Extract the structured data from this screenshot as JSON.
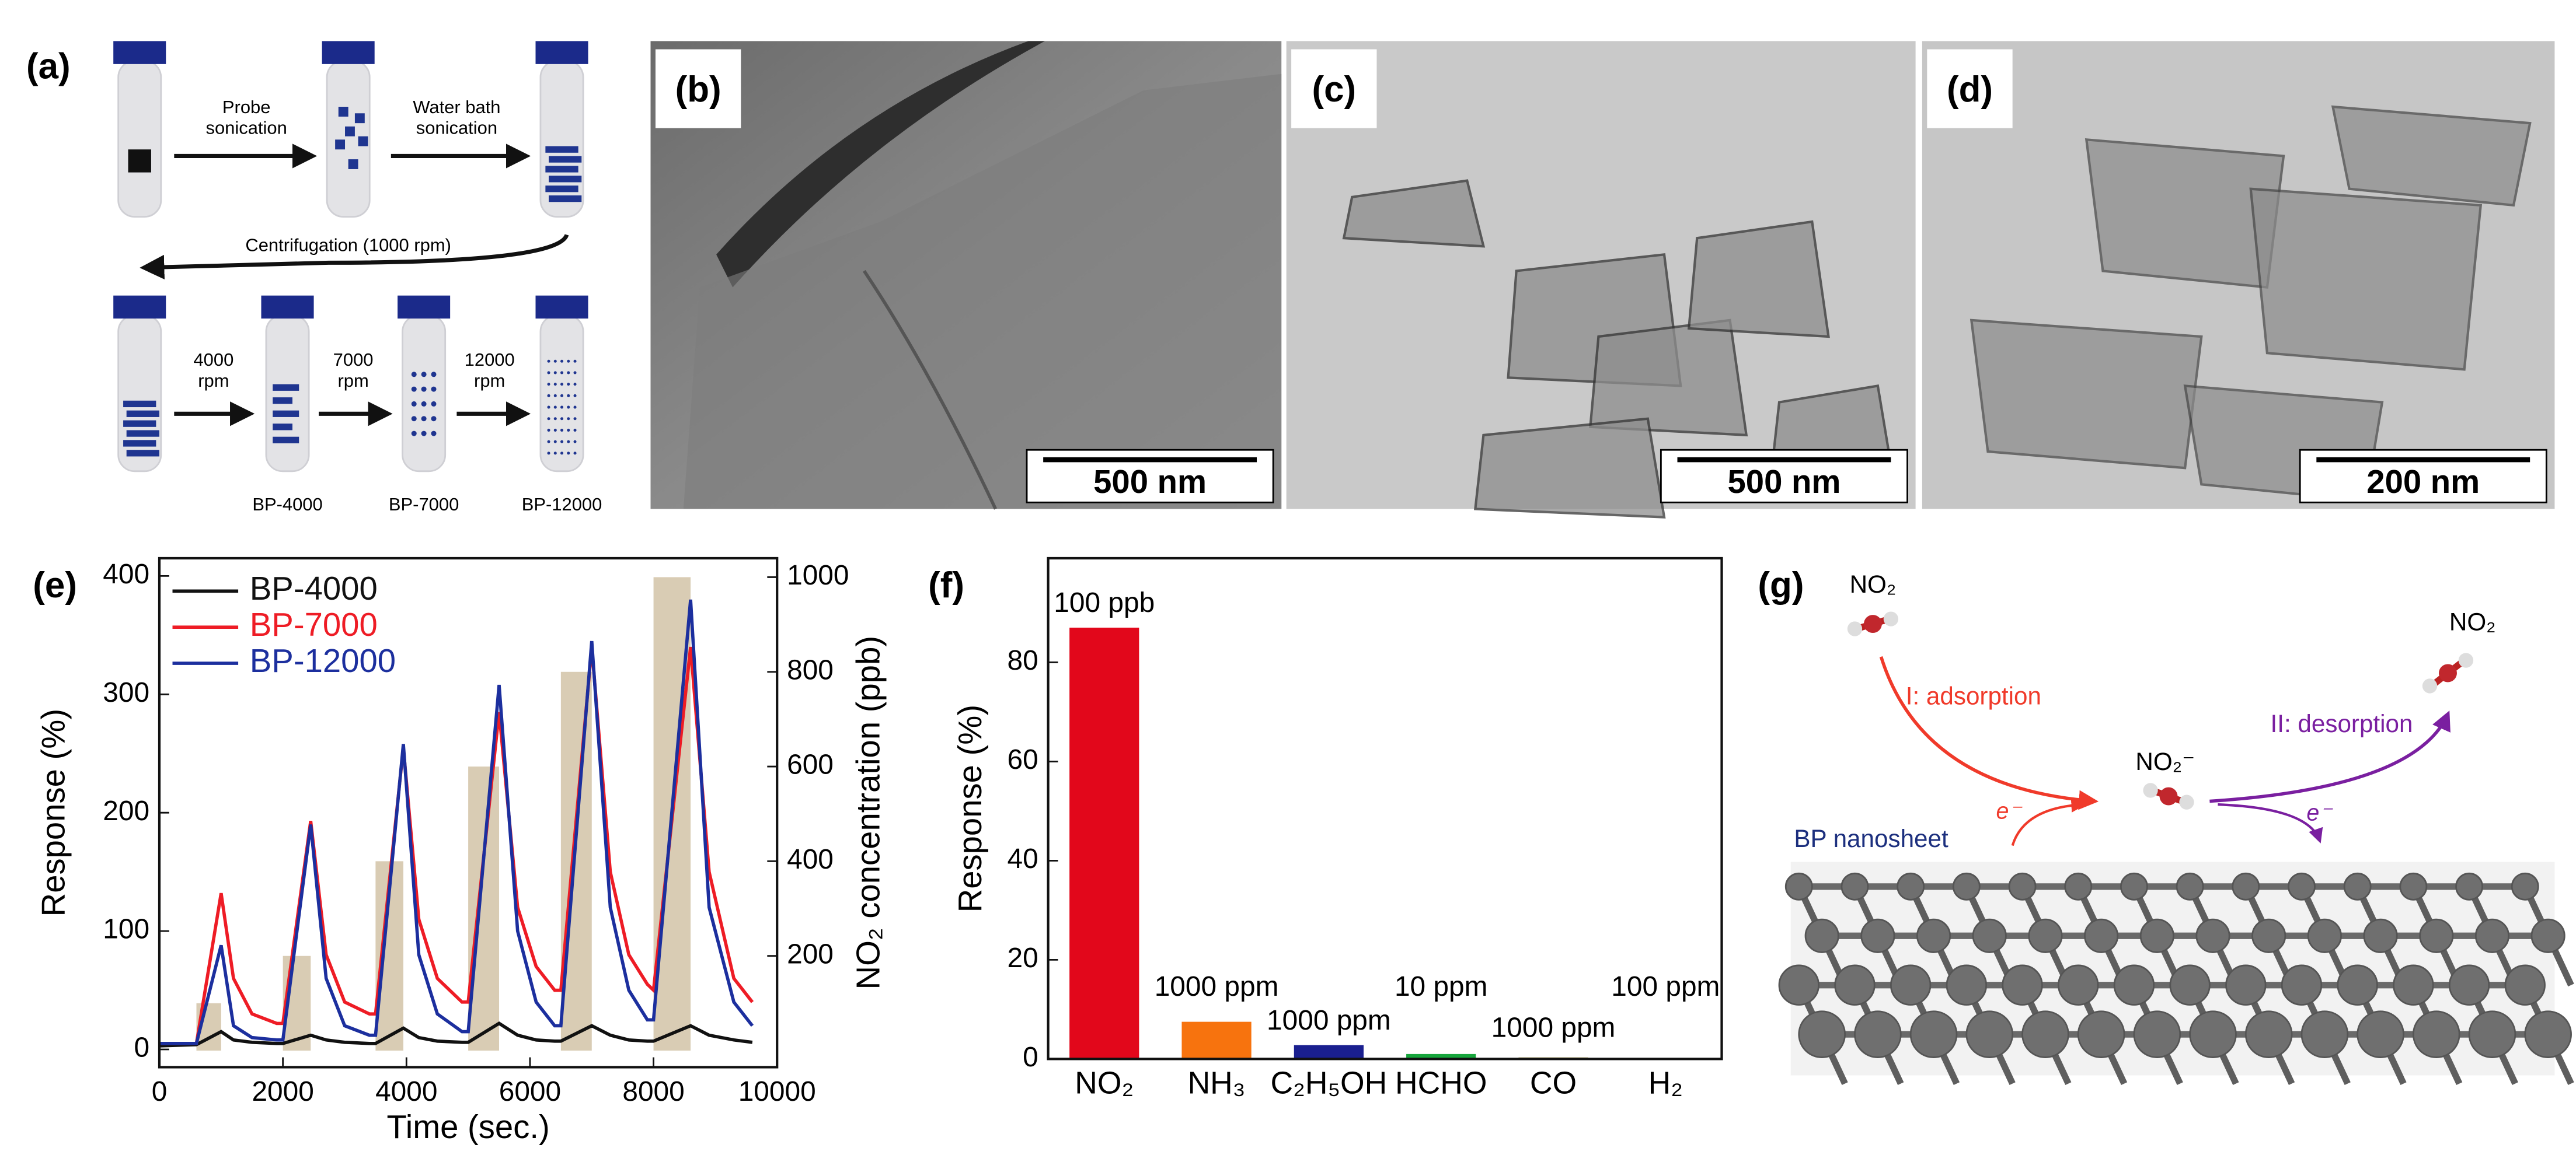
{
  "scheme": {
    "label": "(a)",
    "steps": [
      "Probe sonication",
      "Water bath sonication",
      "Centrifugation (1000 rpm)"
    ],
    "speeds": [
      "4000 rpm",
      "7000 rpm",
      "12000 rpm"
    ],
    "samples": [
      "BP-4000",
      "BP-7000",
      "BP-12000"
    ]
  },
  "tem_images": [
    {
      "label": "(b)",
      "scale_bar": "500 nm"
    },
    {
      "label": "(c)",
      "scale_bar": "500 nm"
    },
    {
      "label": "(d)",
      "scale_bar": "200 nm"
    }
  ],
  "chart_data": [
    {
      "label": "(e)",
      "type": "line",
      "xlabel": "Time (sec.)",
      "ylabel": "Response (%)",
      "y2label": "NO₂ concentration (ppb)",
      "x": [
        0,
        600,
        1000,
        1200,
        1500,
        1900,
        2000,
        2450,
        2700,
        3000,
        3400,
        3500,
        3950,
        4200,
        4500,
        4900,
        5000,
        5500,
        5800,
        6100,
        6400,
        6500,
        7000,
        7300,
        7600,
        7900,
        8000,
        8600,
        8900,
        9300,
        9600
      ],
      "series": [
        {
          "name": "BP-4000",
          "color": "#111111",
          "values": [
            3,
            4,
            15,
            8,
            6,
            5,
            5,
            12,
            8,
            6,
            5,
            5,
            18,
            10,
            7,
            6,
            6,
            22,
            12,
            8,
            7,
            7,
            20,
            12,
            8,
            7,
            7,
            20,
            12,
            8,
            6
          ]
        },
        {
          "name": "BP-7000",
          "color": "#ee1c25",
          "values": [
            5,
            5,
            132,
            60,
            30,
            22,
            22,
            193,
            80,
            40,
            30,
            30,
            255,
            110,
            60,
            40,
            40,
            285,
            120,
            70,
            50,
            50,
            340,
            150,
            80,
            55,
            50,
            340,
            150,
            60,
            40
          ]
        },
        {
          "name": "BP-12000",
          "color": "#1c2f9e",
          "values": [
            5,
            5,
            88,
            20,
            10,
            8,
            8,
            190,
            60,
            20,
            12,
            12,
            258,
            80,
            30,
            15,
            15,
            308,
            100,
            40,
            20,
            20,
            345,
            120,
            50,
            25,
            25,
            380,
            120,
            40,
            20
          ]
        }
      ],
      "bars": {
        "x_start": [
          600,
          2000,
          3500,
          5000,
          6500,
          8000
        ],
        "x_end": [
          1000,
          2450,
          3950,
          5500,
          7000,
          8600
        ],
        "values": [
          100,
          200,
          400,
          600,
          800,
          1000
        ],
        "axis": "y2",
        "color": "#d9ccb4"
      },
      "xlim": [
        0,
        10000
      ],
      "xticks": [
        0,
        2000,
        4000,
        6000,
        8000,
        10000
      ],
      "ylim": [
        -15,
        415
      ],
      "yticks": [
        0,
        100,
        200,
        300,
        400
      ],
      "y2lim": [
        -35,
        1040
      ],
      "y2ticks": [
        200,
        400,
        600,
        800,
        1000
      ],
      "legend": "upper left"
    },
    {
      "label": "(f)",
      "type": "bar",
      "ylabel": "Response (%)",
      "categories": [
        "NO₂",
        "NH₃",
        "C₂H₅OH",
        "HCHO",
        "CO",
        "H₂"
      ],
      "values": [
        87,
        7.5,
        2.8,
        1,
        0.3,
        0.2
      ],
      "value_labels": [
        "100 ppb",
        "1000 ppm",
        "1000 ppm",
        "10 ppm",
        "1000 ppm",
        "100 ppm"
      ],
      "colors": [
        "#e2071b",
        "#f7730e",
        "#1a1f8f",
        "#17a63c",
        "#8a7a1a",
        "#888888"
      ],
      "ylim": [
        0,
        101
      ],
      "yticks": [
        0,
        20,
        40,
        60,
        80
      ]
    }
  ],
  "diagram": {
    "label": "(g)",
    "no2_in": "NO₂",
    "adsorption": "I: adsorption",
    "ion": "NO₂⁻",
    "desorption": "II: desorption",
    "no2_out": "NO₂",
    "surface": "BP nanosheet",
    "electron_in": "e⁻",
    "electron_out": "e⁻"
  }
}
